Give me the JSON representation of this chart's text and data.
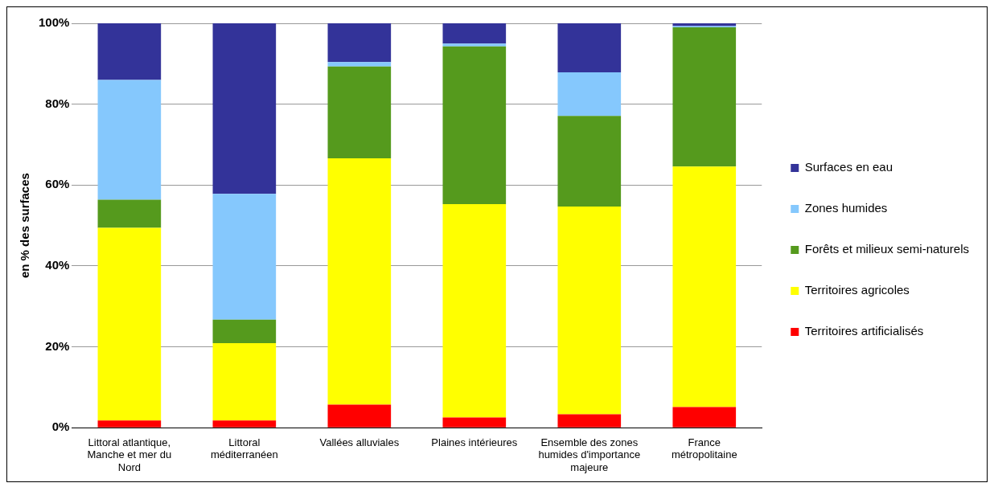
{
  "chart_data": {
    "type": "bar",
    "stacked": true,
    "ylabel": "en % des surfaces",
    "categories": [
      "Littoral atlantique, Manche et mer du Nord",
      "Littoral méditerranéen",
      "Vallées alluviales",
      "Plaines intérieures",
      "Ensemble des zones humides d'importance majeure",
      "France métropolitaine"
    ],
    "series": [
      {
        "name": "Territoires artificialisés",
        "color": "#ff0000",
        "values": [
          1.8,
          1.8,
          5.7,
          2.5,
          3.3,
          5.1
        ]
      },
      {
        "name": "Territoires agricoles",
        "color": "#ffff00",
        "values": [
          47.6,
          19.1,
          60.9,
          52.8,
          51.4,
          59.5
        ]
      },
      {
        "name": "Forêts et milieux semi-naturels",
        "color": "#559a1d",
        "values": [
          7.0,
          5.8,
          22.7,
          39.0,
          22.4,
          34.4
        ]
      },
      {
        "name": "Zones humides",
        "color": "#85c8fd",
        "values": [
          29.6,
          31.1,
          1.1,
          0.7,
          10.8,
          0.3
        ]
      },
      {
        "name": "Surfaces en eau",
        "color": "#333399",
        "values": [
          14.0,
          42.2,
          9.6,
          5.0,
          12.1,
          0.7
        ]
      }
    ],
    "ylim": [
      0,
      100
    ],
    "yticks": [
      {
        "value": 0,
        "label": "0%"
      },
      {
        "value": 20,
        "label": "20%"
      },
      {
        "value": 40,
        "label": "40%"
      },
      {
        "value": 60,
        "label": "60%"
      },
      {
        "value": 80,
        "label": "80%"
      },
      {
        "value": 100,
        "label": "100%"
      }
    ],
    "grid": "y",
    "legend": "right"
  }
}
